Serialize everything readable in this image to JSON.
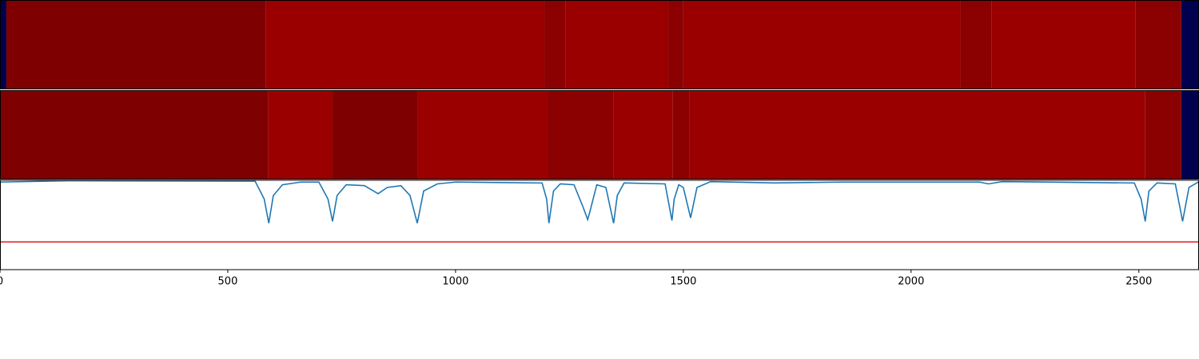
{
  "chart_data": {
    "type": "segmentation",
    "xlim": [
      0,
      2632
    ],
    "xticks": [
      0,
      500,
      1000,
      1500,
      2000,
      2500
    ],
    "tracks": [
      {
        "segments": [
          {
            "start": 0,
            "end": 14,
            "color": "#00004f"
          },
          {
            "start": 14,
            "end": 584,
            "color": "#7f0000"
          },
          {
            "start": 584,
            "end": 1195,
            "color": "#9a0000"
          },
          {
            "start": 1195,
            "end": 1242,
            "color": "#8b0000"
          },
          {
            "start": 1242,
            "end": 1467,
            "color": "#9a0000"
          },
          {
            "start": 1467,
            "end": 1500,
            "color": "#8b0000"
          },
          {
            "start": 1500,
            "end": 2109,
            "color": "#9a0000"
          },
          {
            "start": 2109,
            "end": 2177,
            "color": "#8b0000"
          },
          {
            "start": 2177,
            "end": 2493,
            "color": "#9a0000"
          },
          {
            "start": 2493,
            "end": 2593,
            "color": "#8b0000"
          },
          {
            "start": 2593,
            "end": 2632,
            "color": "#00004f"
          }
        ]
      },
      {
        "segments": [
          {
            "start": 0,
            "end": 588,
            "color": "#7f0000"
          },
          {
            "start": 588,
            "end": 730,
            "color": "#9a0000"
          },
          {
            "start": 730,
            "end": 916,
            "color": "#7f0000"
          },
          {
            "start": 916,
            "end": 1202,
            "color": "#9a0000"
          },
          {
            "start": 1202,
            "end": 1347,
            "color": "#8b0000"
          },
          {
            "start": 1347,
            "end": 1477,
            "color": "#9a0000"
          },
          {
            "start": 1477,
            "end": 1514,
            "color": "#8b0000"
          },
          {
            "start": 1514,
            "end": 2514,
            "color": "#9a0000"
          },
          {
            "start": 2514,
            "end": 2593,
            "color": "#8b0000"
          },
          {
            "start": 2593,
            "end": 2632,
            "color": "#00004f"
          }
        ]
      }
    ],
    "ylim": [
      0,
      1
    ],
    "line": {
      "color": "#1f77b4",
      "x": [
        0,
        150,
        560,
        580,
        590,
        600,
        620,
        660,
        700,
        720,
        730,
        740,
        760,
        800,
        830,
        850,
        880,
        900,
        916,
        930,
        960,
        1000,
        1190,
        1200,
        1205,
        1215,
        1230,
        1260,
        1280,
        1290,
        1295,
        1310,
        1330,
        1347,
        1355,
        1370,
        1460,
        1475,
        1480,
        1490,
        1500,
        1516,
        1530,
        1560,
        1700,
        1850,
        2150,
        2170,
        2200,
        2490,
        2505,
        2514,
        2522,
        2540,
        2580,
        2590,
        2596,
        2610,
        2632
      ],
      "values": [
        0.98,
        0.995,
        0.99,
        0.79,
        0.52,
        0.83,
        0.95,
        0.98,
        0.98,
        0.79,
        0.54,
        0.83,
        0.95,
        0.94,
        0.85,
        0.92,
        0.94,
        0.83,
        0.52,
        0.88,
        0.96,
        0.98,
        0.97,
        0.79,
        0.52,
        0.88,
        0.96,
        0.95,
        0.7,
        0.56,
        0.65,
        0.95,
        0.92,
        0.52,
        0.83,
        0.97,
        0.96,
        0.55,
        0.79,
        0.95,
        0.92,
        0.58,
        0.92,
        0.985,
        0.97,
        0.98,
        0.98,
        0.96,
        0.985,
        0.97,
        0.79,
        0.54,
        0.88,
        0.97,
        0.96,
        0.7,
        0.54,
        0.92,
        0.985
      ]
    },
    "threshold": {
      "value": 0.31,
      "color": "#e41a1c"
    }
  }
}
